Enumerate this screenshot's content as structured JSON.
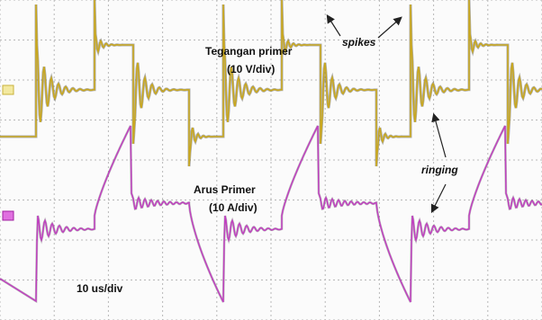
{
  "annotations": {
    "voltage_label": "Tegangan primer",
    "voltage_scale": "(10 V/div)",
    "spikes": "spikes",
    "ringing": "ringing",
    "current_label": "Arus Primer",
    "current_scale": "(10 A/div)",
    "time_scale": "10 us/div"
  }
}
